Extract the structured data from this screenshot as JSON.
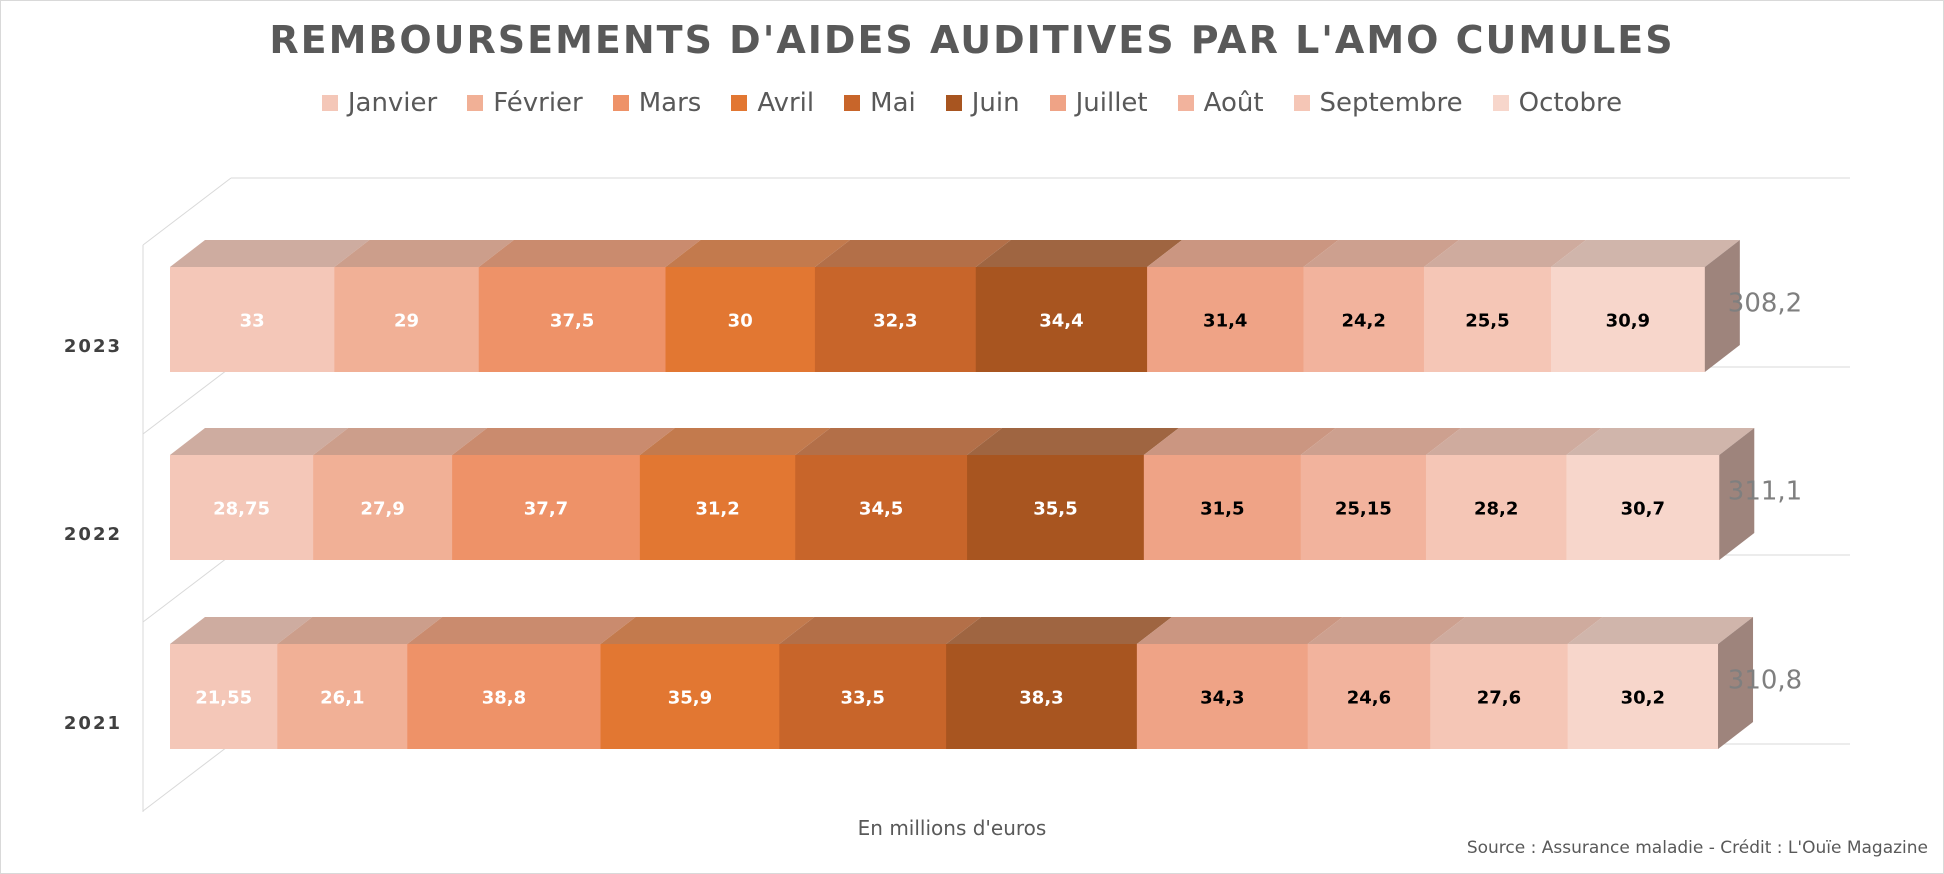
{
  "chart_data": {
    "type": "bar",
    "orientation": "horizontal",
    "stacked": true,
    "three_d": true,
    "title": "REMBOURSEMENTS D'AIDES AUDITIVES PAR L'AMO CUMULES",
    "xlabel": "En millions d'euros",
    "source": "Source : Assurance maladie - Crédit : L'Ouïe Magazine",
    "legend_position": "top",
    "categories": [
      "2023",
      "2022",
      "2021"
    ],
    "series": [
      {
        "name": "Janvier",
        "color": "#F4C7B8",
        "label_color": "#ffffff",
        "values": [
          33,
          28.75,
          21.55
        ],
        "labels": [
          "33",
          "28,75",
          "21,55"
        ]
      },
      {
        "name": "Février",
        "color": "#F1B096",
        "label_color": "#ffffff",
        "values": [
          29,
          27.9,
          26.1
        ],
        "labels": [
          "29",
          "27,9",
          "26,1"
        ]
      },
      {
        "name": "Mars",
        "color": "#EE9268",
        "label_color": "#ffffff",
        "values": [
          37.5,
          37.7,
          38.8
        ],
        "labels": [
          "37,5",
          "37,7",
          "38,8"
        ]
      },
      {
        "name": "Avril",
        "color": "#E27732",
        "label_color": "#ffffff",
        "values": [
          30,
          31.2,
          35.9
        ],
        "labels": [
          "30",
          "31,2",
          "35,9"
        ]
      },
      {
        "name": "Mai",
        "color": "#C8652A",
        "label_color": "#ffffff",
        "values": [
          32.3,
          34.5,
          33.5
        ],
        "labels": [
          "32,3",
          "34,5",
          "33,5"
        ]
      },
      {
        "name": "Juin",
        "color": "#A85520",
        "label_color": "#ffffff",
        "values": [
          34.4,
          35.5,
          38.3
        ],
        "labels": [
          "34,4",
          "35,5",
          "38,3"
        ]
      },
      {
        "name": "Juillet",
        "color": "#EFA386",
        "label_color": "#000000",
        "values": [
          31.4,
          31.5,
          34.3
        ],
        "labels": [
          "31,4",
          "31,5",
          "34,3"
        ]
      },
      {
        "name": "Août",
        "color": "#F2B39D",
        "label_color": "#000000",
        "values": [
          24.2,
          25.15,
          24.6
        ],
        "labels": [
          "24,2",
          "25,15",
          "24,6"
        ]
      },
      {
        "name": "Septembre",
        "color": "#F5C6B6",
        "label_color": "#000000",
        "values": [
          25.5,
          28.2,
          27.6
        ],
        "labels": [
          "25,5",
          "28,2",
          "27,6"
        ]
      },
      {
        "name": "Octobre",
        "color": "#F7D6CB",
        "label_color": "#000000",
        "values": [
          30.9,
          30.7,
          30.2
        ],
        "labels": [
          "30,9",
          "30,7",
          "30,2"
        ]
      }
    ],
    "totals": [
      {
        "category": "2023",
        "value": 308.2,
        "label": "308,2"
      },
      {
        "category": "2022",
        "value": 311.1,
        "label": "311,1"
      },
      {
        "category": "2021",
        "value": 310.8,
        "label": "310,8"
      }
    ],
    "grid": true
  }
}
